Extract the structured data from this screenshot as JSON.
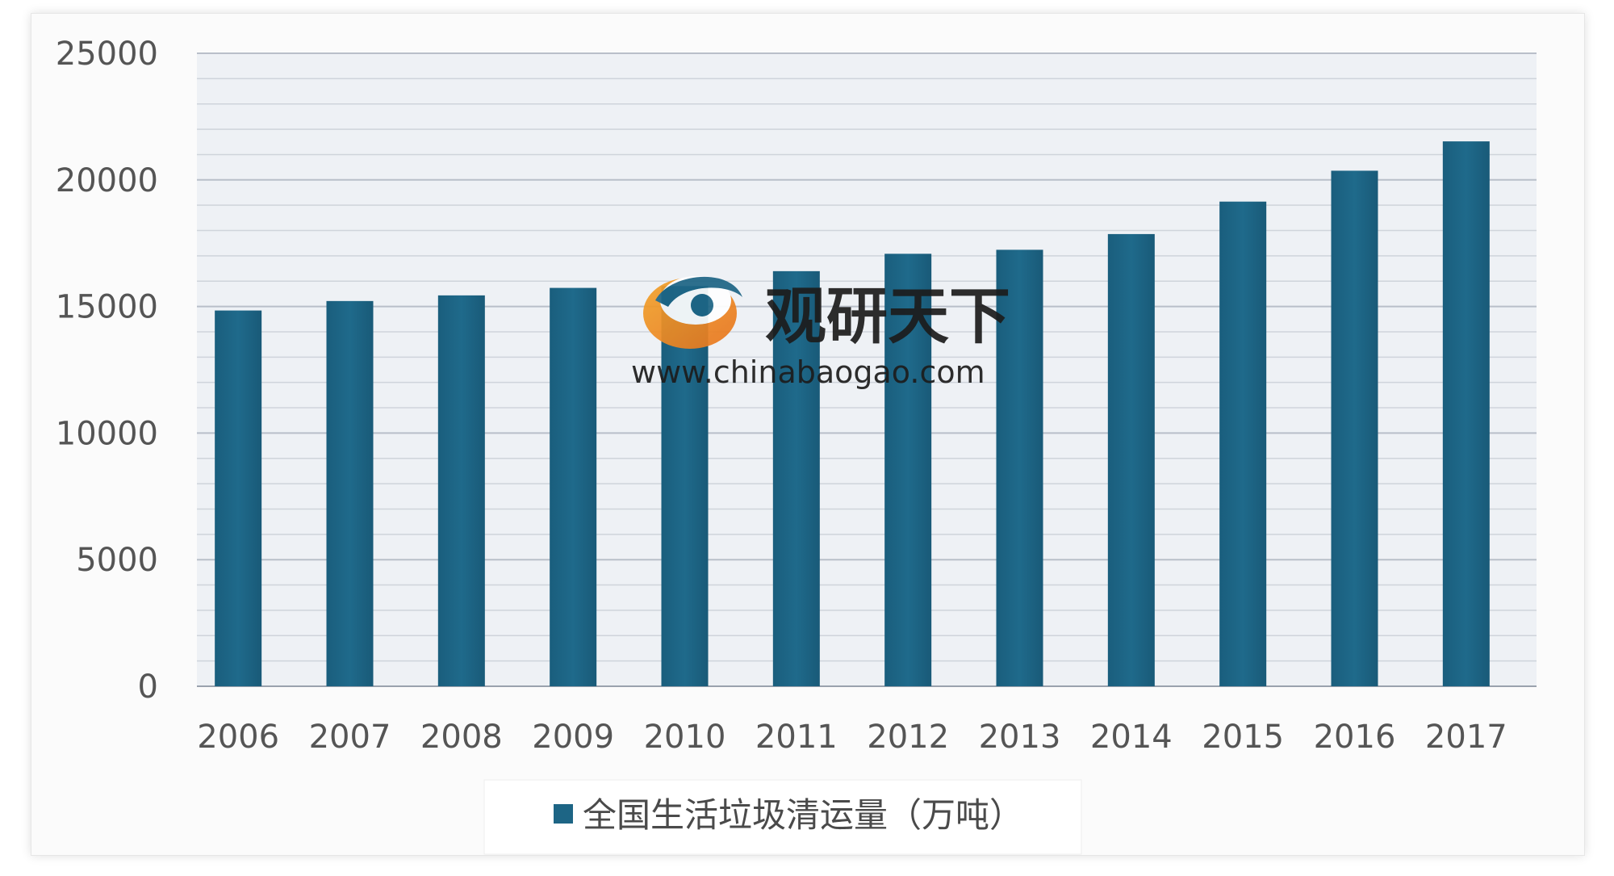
{
  "chart_data": {
    "type": "bar",
    "categories": [
      "2006",
      "2007",
      "2008",
      "2009",
      "2010",
      "2011",
      "2012",
      "2013",
      "2014",
      "2015",
      "2016",
      "2017"
    ],
    "series": [
      {
        "name": "全国生活垃圾清运量（万吨）",
        "values": [
          14841,
          15215,
          15438,
          15734,
          15805,
          16395,
          17081,
          17239,
          17860,
          19142,
          20362,
          21521
        ],
        "color": "#1d6585"
      }
    ],
    "yticks": [
      "0",
      "5000",
      "10000",
      "15000",
      "20000",
      "25000"
    ],
    "ylim": [
      0,
      25000
    ],
    "grid": true,
    "legend": "bottom"
  },
  "watermark": {
    "brand": "观研天下",
    "url": "www.chinabaogao.com"
  },
  "colors": {
    "bar": "#1d6585",
    "plot_bg": "#eef1f5",
    "grid": "#c9ced6"
  }
}
